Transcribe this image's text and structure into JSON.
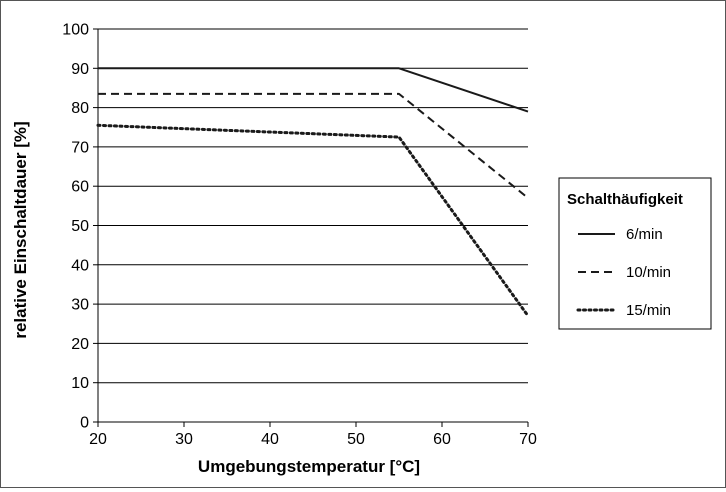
{
  "chart_data": {
    "type": "line",
    "xlabel": "Umgebungstemperatur [°C]",
    "ylabel": "relative Einschaltdauer [%]",
    "xlim": [
      20,
      70
    ],
    "ylim": [
      0,
      100
    ],
    "x_ticks": [
      "20",
      "30",
      "40",
      "50",
      "60",
      "70"
    ],
    "y_ticks": [
      "0",
      "10",
      "20",
      "30",
      "40",
      "50",
      "60",
      "70",
      "80",
      "90",
      "100"
    ],
    "grid": "horizontal",
    "legend_placement": "right",
    "legend_title": "Schalthäufigkeit",
    "series": [
      {
        "name": "6/min",
        "style": "solid",
        "x": [
          20,
          55,
          70
        ],
        "y": [
          90,
          90,
          79
        ]
      },
      {
        "name": "10/min",
        "style": "dashed",
        "x": [
          20,
          55,
          70
        ],
        "y": [
          83.5,
          83.5,
          57
        ]
      },
      {
        "name": "15/min",
        "style": "dotted",
        "x": [
          20,
          55,
          70
        ],
        "y": [
          75.5,
          72.5,
          27
        ]
      }
    ]
  },
  "colors": {
    "line": "#1a1a1a",
    "grid": "#000000",
    "frame": "#555555"
  }
}
